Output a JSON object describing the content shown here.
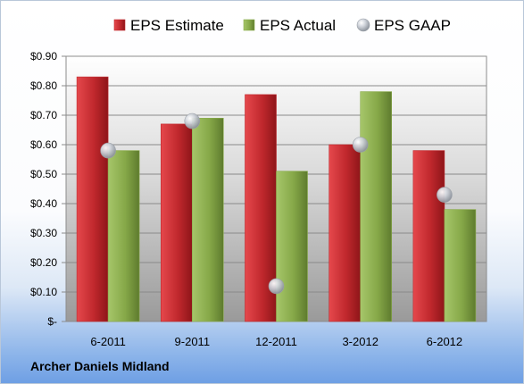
{
  "company": "Archer Daniels Midland",
  "chart_data": {
    "type": "bar",
    "categories": [
      "6-2011",
      "9-2011",
      "12-2011",
      "3-2012",
      "6-2012"
    ],
    "series": [
      {
        "name": "EPS Estimate",
        "kind": "bar",
        "color": "#c0282d",
        "values": [
          0.83,
          0.67,
          0.77,
          0.6,
          0.58
        ]
      },
      {
        "name": "EPS Actual",
        "kind": "bar",
        "color": "#8aac4c",
        "values": [
          0.58,
          0.69,
          0.51,
          0.78,
          0.38
        ]
      },
      {
        "name": "EPS GAAP",
        "kind": "marker",
        "color": "#b8bcc4",
        "values": [
          0.58,
          0.68,
          0.12,
          0.6,
          0.43
        ]
      }
    ],
    "ylim": [
      0,
      0.9
    ],
    "y_ticks": [
      "$-",
      "$0.10",
      "$0.20",
      "$0.30",
      "$0.40",
      "$0.50",
      "$0.60",
      "$0.70",
      "$0.80",
      "$0.90"
    ],
    "grid": true,
    "legend": "top"
  }
}
